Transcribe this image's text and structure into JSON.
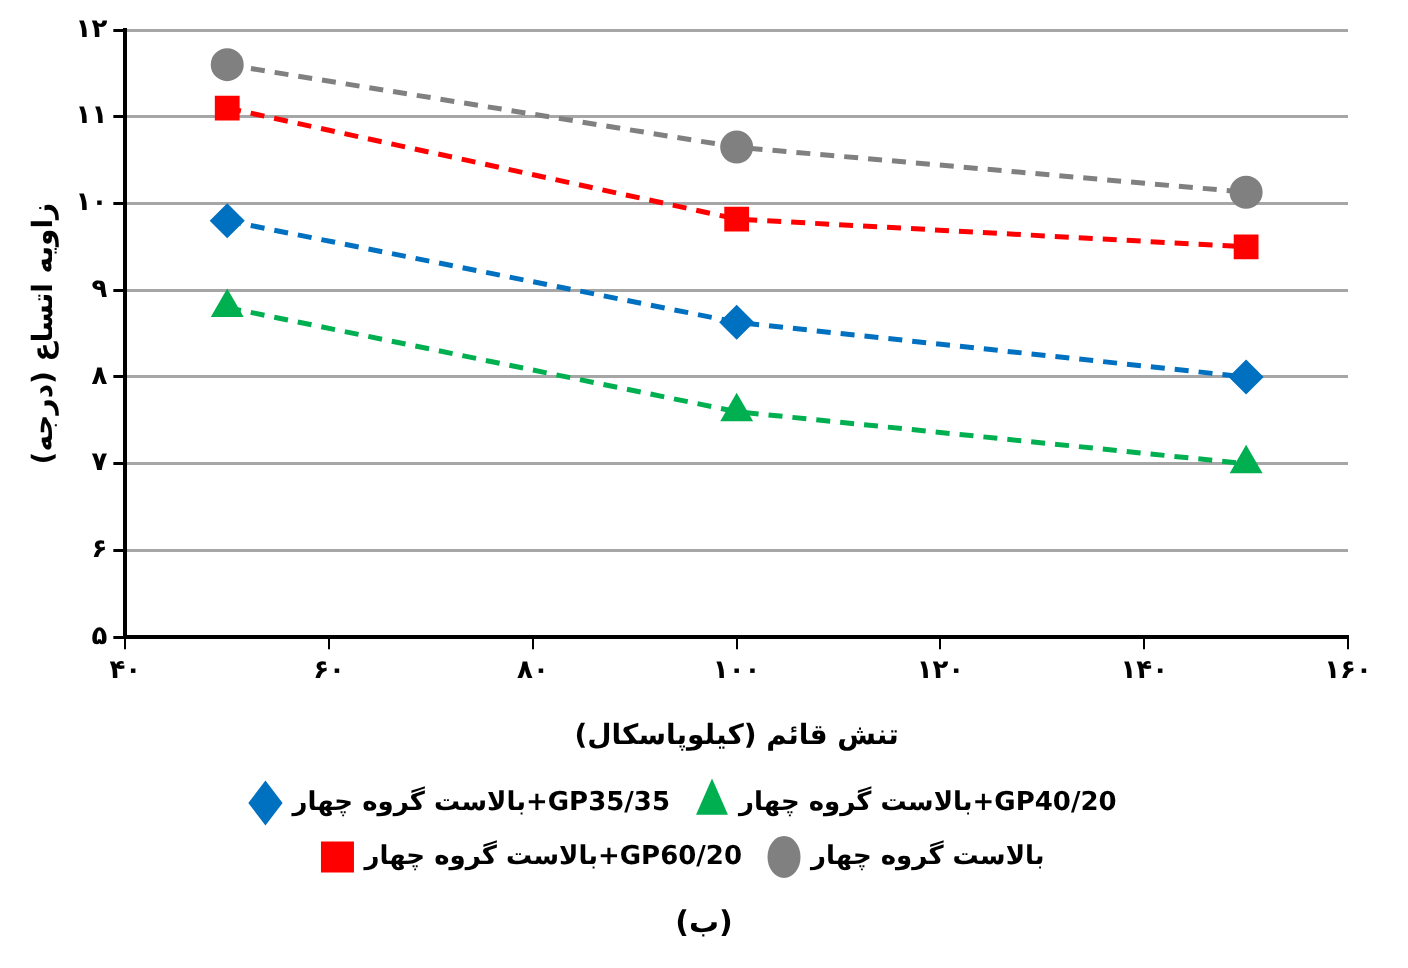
{
  "chart_data": {
    "type": "line",
    "xlabel": "تنش قائم (کیلوپاسکال)",
    "ylabel": "زاویه اتساع (درجه)",
    "x": [
      50,
      100,
      150
    ],
    "series": [
      {
        "name": "بالاست گروه چهار+GP35/35",
        "color": "#0070c0",
        "marker": "diamond",
        "values": [
          9.8,
          8.63,
          8.0
        ]
      },
      {
        "name": "بالاست گروه چهار+GP40/20",
        "color": "#00b050",
        "marker": "triangle",
        "values": [
          8.8,
          7.6,
          7.0
        ]
      },
      {
        "name": "بالاست گروه چهار+GP60/20",
        "color": "#ff0000",
        "marker": "square",
        "values": [
          11.1,
          9.82,
          9.5
        ]
      },
      {
        "name": "بالاست گروه چهار",
        "color": "#808080",
        "marker": "circle",
        "values": [
          11.6,
          10.65,
          10.13
        ]
      }
    ],
    "xlim": [
      40,
      160
    ],
    "xticks": [
      {
        "value": 40,
        "label": "۴۰"
      },
      {
        "value": 60,
        "label": "۶۰"
      },
      {
        "value": 80,
        "label": "۸۰"
      },
      {
        "value": 100,
        "label": "۱۰۰"
      },
      {
        "value": 120,
        "label": "۱۲۰"
      },
      {
        "value": 140,
        "label": "۱۴۰"
      },
      {
        "value": 160,
        "label": "۱۶۰"
      }
    ],
    "ylim": [
      5,
      12
    ],
    "yticks": [
      {
        "value": 5,
        "label": "۵"
      },
      {
        "value": 6,
        "label": "۶"
      },
      {
        "value": 7,
        "label": "۷"
      },
      {
        "value": 8,
        "label": "۸"
      },
      {
        "value": 9,
        "label": "۹"
      },
      {
        "value": 10,
        "label": "۱۰"
      },
      {
        "value": 11,
        "label": "۱۱"
      },
      {
        "value": 12,
        "label": "۱۲"
      }
    ],
    "grid": "y",
    "legend": "bottom",
    "line_style": "dashed",
    "annotations": [
      "(ب)"
    ]
  }
}
